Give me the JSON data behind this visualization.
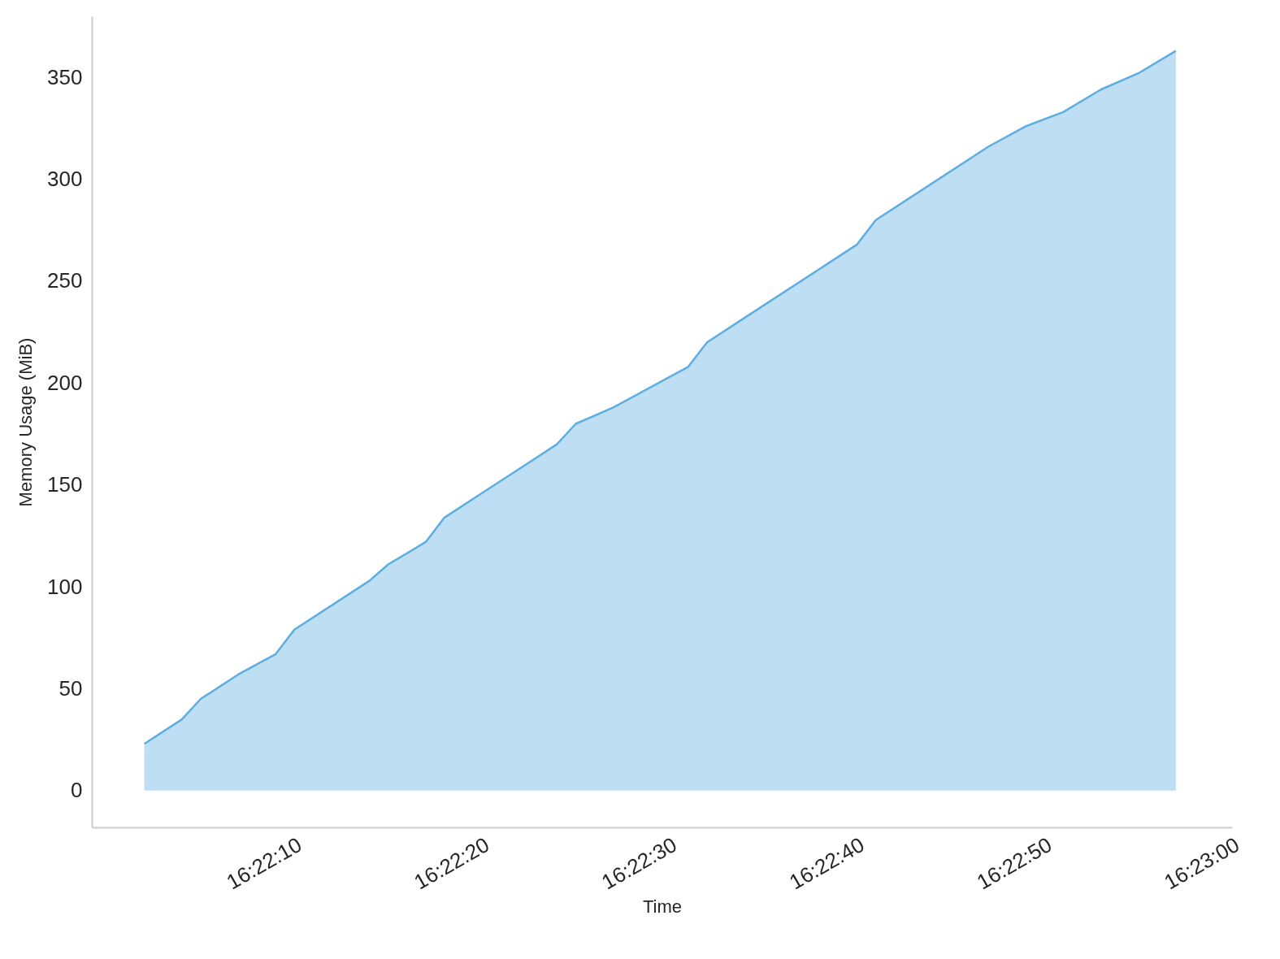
{
  "chart_data": {
    "type": "area",
    "xlabel": "Time",
    "ylabel": "Memory Usage (MiB)",
    "x": [
      16.367222,
      16.367778,
      16.368056,
      16.368611,
      16.369167,
      16.369444,
      16.370556,
      16.370833,
      16.371389,
      16.371667,
      16.372222,
      16.372778,
      16.373333,
      16.373611,
      16.374167,
      16.375278,
      16.375556,
      16.376111,
      16.377222,
      16.377778,
      16.378056,
      16.379722,
      16.380278,
      16.380833,
      16.381389,
      16.381944,
      16.3825
    ],
    "series": [
      {
        "color": "#5dade2",
        "values": [
          23,
          35,
          45,
          57,
          67,
          79,
          103,
          111,
          122,
          134,
          146,
          158,
          170,
          180,
          188,
          208,
          220,
          232,
          256,
          268,
          280,
          316,
          326,
          333,
          344,
          352,
          363
        ]
      }
    ],
    "xlim": [
      16.366444,
      16.383333
    ],
    "xticks": [
      {
        "value": 16.369444,
        "label": "16:22:10"
      },
      {
        "value": 16.372222,
        "label": "16:22:20"
      },
      {
        "value": 16.375,
        "label": "16:22:30"
      },
      {
        "value": 16.377778,
        "label": "16:22:40"
      },
      {
        "value": 16.380556,
        "label": "16:22:50"
      },
      {
        "value": 16.383333,
        "label": "16:23:00"
      }
    ],
    "ylim": [
      -18,
      380
    ],
    "yticks": [
      0,
      50,
      100,
      150,
      200,
      250,
      300,
      350
    ],
    "grid": false
  }
}
